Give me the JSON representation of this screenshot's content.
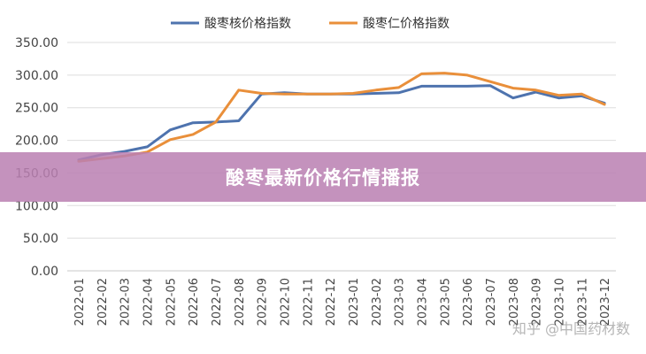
{
  "chart_data": {
    "type": "line",
    "title": "",
    "xlabel": "",
    "ylabel": "",
    "ylim": [
      0,
      350
    ],
    "yticks": [
      "0.00",
      "50.00",
      "100.00",
      "150.00",
      "200.00",
      "250.00",
      "300.00",
      "350.00"
    ],
    "categories": [
      "2022-01",
      "2022-02",
      "2022-03",
      "2022-04",
      "2022-05",
      "2022-06",
      "2022-07",
      "2022-08",
      "2022-09",
      "2022-10",
      "2022-11",
      "2022-12",
      "2023-01",
      "2023-02",
      "2023-03",
      "2023-04",
      "2023-05",
      "2023-06",
      "2023-07",
      "2023-08",
      "2023-09",
      "2023-10",
      "2023-11",
      "2023-12"
    ],
    "series": [
      {
        "name": "酸枣核价格指数",
        "color": "#4e73ae",
        "values": [
          170,
          178,
          183,
          190,
          216,
          227,
          228,
          230,
          271,
          273,
          271,
          271,
          271,
          272,
          273,
          283,
          283,
          283,
          284,
          265,
          274,
          265,
          268,
          257
        ]
      },
      {
        "name": "酸枣仁价格指数",
        "color": "#e98f3a",
        "values": [
          168,
          172,
          176,
          182,
          201,
          209,
          228,
          277,
          272,
          271,
          271,
          271,
          272,
          277,
          281,
          302,
          303,
          300,
          290,
          280,
          277,
          269,
          271,
          255
        ]
      }
    ],
    "grid": "horizontal",
    "legend_position": "top-center"
  },
  "banner": {
    "title": "酸枣最新价格行情播报"
  },
  "watermark": {
    "text": "知乎 @中国药材数"
  }
}
